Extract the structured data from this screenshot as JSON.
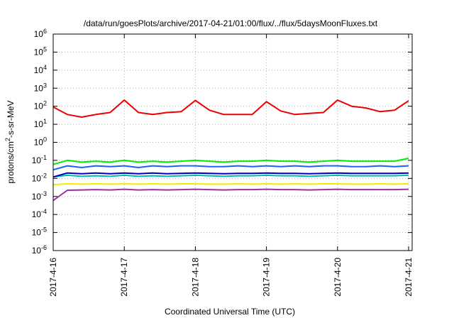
{
  "chart_data": {
    "type": "line",
    "title": "/data/run/goesPlots/archive/2017-04-21/01:00/flux/../flux/5daysMoonFluxes.txt",
    "xlabel": "Coordinated Universal Time (UTC)",
    "ylabel": "protons/cm2-s-sr-MeV",
    "ylabel_parts": {
      "pre": "protons/cm",
      "sup": "2",
      "post": "-s-sr-MeV"
    },
    "xlim": [
      0,
      5.05
    ],
    "ylim": [
      1e-06,
      1000000.0
    ],
    "yscale": "log",
    "grid": true,
    "x_ticks": [
      {
        "x": 0,
        "label": "2017-4-16"
      },
      {
        "x": 1,
        "label": "2017-4-17"
      },
      {
        "x": 2,
        "label": "2017-4-18"
      },
      {
        "x": 3,
        "label": "2017-4-19"
      },
      {
        "x": 4,
        "label": "2017-4-20"
      },
      {
        "x": 5,
        "label": "2017-4-21"
      }
    ],
    "y_ticks": [
      {
        "exp": -6
      },
      {
        "exp": -5
      },
      {
        "exp": -4
      },
      {
        "exp": -3
      },
      {
        "exp": -2
      },
      {
        "exp": -1
      },
      {
        "exp": 0
      },
      {
        "exp": 1
      },
      {
        "exp": 2
      },
      {
        "exp": 3
      },
      {
        "exp": 4
      },
      {
        "exp": 5
      },
      {
        "exp": 6
      }
    ],
    "x": [
      0.0,
      0.2,
      0.4,
      0.6,
      0.8,
      1.0,
      1.2,
      1.4,
      1.6,
      1.8,
      2.0,
      2.2,
      2.4,
      2.6,
      2.8,
      3.0,
      3.2,
      3.4,
      3.6,
      3.8,
      4.0,
      4.2,
      4.4,
      4.6,
      4.8,
      5.0
    ],
    "series": [
      {
        "color": "#ee0000",
        "values": [
          90,
          35,
          25,
          35,
          45,
          220,
          45,
          35,
          45,
          50,
          210,
          60,
          35,
          35,
          35,
          180,
          55,
          35,
          40,
          45,
          220,
          100,
          80,
          50,
          60,
          200
        ]
      },
      {
        "color": "#00ee00",
        "values": [
          0.06,
          0.1,
          0.08,
          0.09,
          0.08,
          0.1,
          0.08,
          0.09,
          0.08,
          0.09,
          0.1,
          0.09,
          0.08,
          0.09,
          0.09,
          0.1,
          0.09,
          0.09,
          0.08,
          0.09,
          0.1,
          0.09,
          0.09,
          0.09,
          0.09,
          0.13
        ]
      },
      {
        "color": "#2060ff",
        "values": [
          0.03,
          0.05,
          0.04,
          0.05,
          0.045,
          0.05,
          0.04,
          0.05,
          0.045,
          0.05,
          0.05,
          0.045,
          0.045,
          0.05,
          0.045,
          0.05,
          0.045,
          0.05,
          0.045,
          0.05,
          0.05,
          0.045,
          0.045,
          0.05,
          0.045,
          0.05
        ]
      },
      {
        "color": "#00bbbb",
        "values": [
          0.012,
          0.015,
          0.013,
          0.014,
          0.013,
          0.015,
          0.013,
          0.014,
          0.013,
          0.014,
          0.015,
          0.014,
          0.013,
          0.014,
          0.014,
          0.015,
          0.014,
          0.014,
          0.013,
          0.014,
          0.015,
          0.014,
          0.014,
          0.014,
          0.014,
          0.015
        ]
      },
      {
        "color": "#0000bb",
        "values": [
          0.012,
          0.02,
          0.018,
          0.02,
          0.018,
          0.02,
          0.018,
          0.02,
          0.018,
          0.019,
          0.02,
          0.019,
          0.018,
          0.019,
          0.019,
          0.02,
          0.019,
          0.019,
          0.018,
          0.019,
          0.02,
          0.019,
          0.019,
          0.019,
          0.019,
          0.02
        ]
      },
      {
        "color": "#eeee00",
        "values": [
          0.0045,
          0.005,
          0.0048,
          0.005,
          0.0048,
          0.005,
          0.0048,
          0.005,
          0.0048,
          0.005,
          0.005,
          0.0048,
          0.0048,
          0.005,
          0.0048,
          0.005,
          0.0048,
          0.005,
          0.0048,
          0.005,
          0.005,
          0.0048,
          0.0048,
          0.005,
          0.0048,
          0.005
        ]
      },
      {
        "color": "#993399",
        "values": [
          0.0006,
          0.0022,
          0.0023,
          0.0024,
          0.0023,
          0.0025,
          0.0023,
          0.0024,
          0.0023,
          0.0024,
          0.0025,
          0.0024,
          0.0023,
          0.0024,
          0.0024,
          0.0025,
          0.0024,
          0.0024,
          0.0023,
          0.0024,
          0.0025,
          0.0024,
          0.0024,
          0.0024,
          0.0024,
          0.0025
        ]
      }
    ]
  }
}
